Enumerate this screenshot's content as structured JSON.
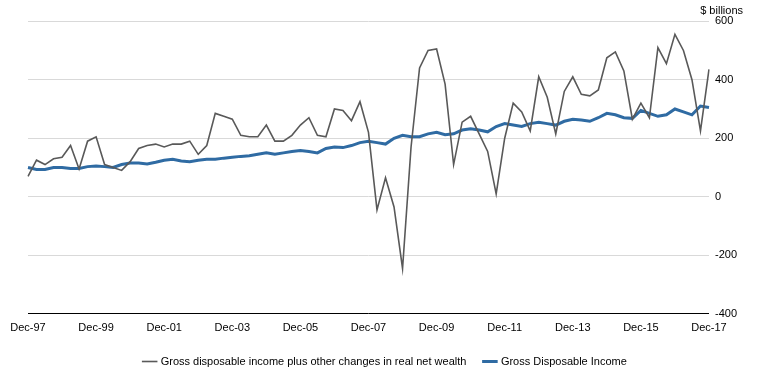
{
  "chart_data": {
    "type": "line",
    "y_label": "$ billions",
    "categories": [
      "Dec-97",
      null,
      null,
      null,
      null,
      null,
      null,
      null,
      "Dec-99",
      null,
      null,
      null,
      null,
      null,
      null,
      null,
      "Dec-01",
      null,
      null,
      null,
      null,
      null,
      null,
      null,
      "Dec-03",
      null,
      null,
      null,
      null,
      null,
      null,
      null,
      "Dec-05",
      null,
      null,
      null,
      null,
      null,
      null,
      null,
      "Dec-07",
      null,
      null,
      null,
      null,
      null,
      null,
      null,
      "Dec-09",
      null,
      null,
      null,
      null,
      null,
      null,
      null,
      "Dec-11",
      null,
      null,
      null,
      null,
      null,
      null,
      null,
      "Dec-13",
      null,
      null,
      null,
      null,
      null,
      null,
      null,
      "Dec-15",
      null,
      null,
      null,
      null,
      null,
      null,
      null,
      "Dec-17"
    ],
    "series": [
      {
        "name": "Gross Disposable Income",
        "color": "#2f6ba3",
        "line_style": "solid",
        "values": [
          100,
          93,
          93,
          100,
          100,
          97,
          97,
          103,
          105,
          103,
          100,
          110,
          115,
          115,
          112,
          118,
          125,
          128,
          122,
          120,
          125,
          128,
          128,
          132,
          135,
          138,
          140,
          145,
          150,
          145,
          150,
          155,
          158,
          155,
          150,
          165,
          170,
          168,
          175,
          185,
          190,
          185,
          180,
          200,
          210,
          205,
          205,
          215,
          220,
          212,
          215,
          228,
          232,
          228,
          222,
          240,
          250,
          245,
          240,
          250,
          255,
          250,
          245,
          258,
          265,
          262,
          258,
          270,
          285,
          280,
          270,
          268,
          295,
          285,
          275,
          280,
          300,
          290,
          280,
          310,
          305
        ]
      },
      {
        "name": "Gross disposable income plus other changes in real net wealth",
        "color": "#595959",
        "line_style": "solid",
        "values": [
          70,
          125,
          110,
          130,
          135,
          175,
          95,
          190,
          205,
          110,
          100,
          90,
          120,
          165,
          175,
          180,
          170,
          180,
          180,
          190,
          145,
          175,
          285,
          275,
          265,
          210,
          205,
          205,
          245,
          190,
          190,
          210,
          245,
          270,
          210,
          205,
          300,
          295,
          260,
          325,
          220,
          -45,
          65,
          -35,
          -245,
          170,
          440,
          500,
          505,
          385,
          110,
          255,
          275,
          215,
          155,
          10,
          200,
          320,
          290,
          225,
          410,
          340,
          215,
          360,
          410,
          350,
          345,
          365,
          475,
          495,
          430,
          265,
          320,
          270,
          510,
          455,
          555,
          500,
          400,
          225,
          435
        ]
      }
    ],
    "ylim": [
      -400,
      600
    ],
    "yticks": [
      -400,
      -200,
      0,
      200,
      400,
      600
    ],
    "grid": true,
    "legend": "bottom"
  }
}
